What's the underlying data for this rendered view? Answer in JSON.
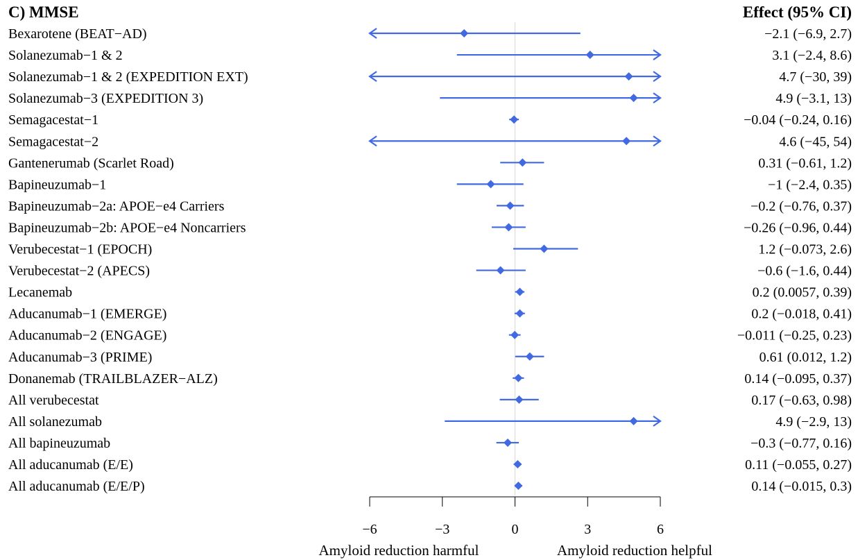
{
  "chart_data": {
    "type": "forest",
    "title": "C) MMSE",
    "effect_header": "Effect (95% CI)",
    "xlim": [
      -6,
      6
    ],
    "xticks": [
      -6,
      -3,
      0,
      3,
      6
    ],
    "xtick_labels": [
      "−6",
      "−3",
      "0",
      "3",
      "6"
    ],
    "xlabel_left": "Amyloid reduction harmful",
    "xlabel_right": "Amyloid reduction helpful",
    "series_color": "#4169e1",
    "rows": [
      {
        "label": "Bexarotene (BEAT−AD)",
        "effect": -2.1,
        "lower": -6.9,
        "upper": 2.7,
        "effect_text": "−2.1  (−6.9, 2.7)"
      },
      {
        "label": "Solanezumab−1 & 2",
        "effect": 3.1,
        "lower": -2.4,
        "upper": 8.6,
        "effect_text": "3.1  (−2.4, 8.6)"
      },
      {
        "label": "Solanezumab−1 & 2 (EXPEDITION EXT)",
        "effect": 4.7,
        "lower": -30,
        "upper": 39,
        "effect_text": "4.7  (−30, 39)"
      },
      {
        "label": "Solanezumab−3 (EXPEDITION 3)",
        "effect": 4.9,
        "lower": -3.1,
        "upper": 13,
        "effect_text": "4.9  (−3.1, 13)"
      },
      {
        "label": "Semagacestat−1",
        "effect": -0.04,
        "lower": -0.24,
        "upper": 0.16,
        "effect_text": "−0.04  (−0.24, 0.16)"
      },
      {
        "label": "Semagacestat−2",
        "effect": 4.6,
        "lower": -45,
        "upper": 54,
        "effect_text": "4.6  (−45, 54)"
      },
      {
        "label": "Gantenerumab (Scarlet Road)",
        "effect": 0.31,
        "lower": -0.61,
        "upper": 1.2,
        "effect_text": "0.31  (−0.61, 1.2)"
      },
      {
        "label": "Bapineuzumab−1",
        "effect": -1,
        "lower": -2.4,
        "upper": 0.35,
        "effect_text": "−1  (−2.4, 0.35)"
      },
      {
        "label": "Bapineuzumab−2a: APOE−e4 Carriers",
        "effect": -0.2,
        "lower": -0.76,
        "upper": 0.37,
        "effect_text": "−0.2  (−0.76, 0.37)"
      },
      {
        "label": "Bapineuzumab−2b: APOE−e4 Noncarriers",
        "effect": -0.26,
        "lower": -0.96,
        "upper": 0.44,
        "effect_text": "−0.26  (−0.96, 0.44)"
      },
      {
        "label": "Verubecestat−1 (EPOCH)",
        "effect": 1.2,
        "lower": -0.073,
        "upper": 2.6,
        "effect_text": "1.2  (−0.073, 2.6)"
      },
      {
        "label": "Verubecestat−2 (APECS)",
        "effect": -0.6,
        "lower": -1.6,
        "upper": 0.44,
        "effect_text": "−0.6  (−1.6, 0.44)"
      },
      {
        "label": "Lecanemab",
        "effect": 0.2,
        "lower": 0.0057,
        "upper": 0.39,
        "effect_text": "0.2  (0.0057, 0.39)"
      },
      {
        "label": "Aducanumab−1 (EMERGE)",
        "effect": 0.2,
        "lower": -0.018,
        "upper": 0.41,
        "effect_text": "0.2  (−0.018, 0.41)"
      },
      {
        "label": "Aducanumab−2 (ENGAGE)",
        "effect": -0.011,
        "lower": -0.25,
        "upper": 0.23,
        "effect_text": "−0.011  (−0.25, 0.23)"
      },
      {
        "label": "Aducanumab−3 (PRIME)",
        "effect": 0.61,
        "lower": 0.012,
        "upper": 1.2,
        "effect_text": "0.61  (0.012, 1.2)"
      },
      {
        "label": "Donanemab (TRAILBLAZER−ALZ)",
        "effect": 0.14,
        "lower": -0.095,
        "upper": 0.37,
        "effect_text": "0.14  (−0.095, 0.37)"
      },
      {
        "label": "All verubecestat",
        "effect": 0.17,
        "lower": -0.63,
        "upper": 0.98,
        "effect_text": "0.17  (−0.63, 0.98)"
      },
      {
        "label": "All solanezumab",
        "effect": 4.9,
        "lower": -2.9,
        "upper": 13,
        "effect_text": "4.9  (−2.9, 13)"
      },
      {
        "label": "All bapineuzumab",
        "effect": -0.3,
        "lower": -0.77,
        "upper": 0.16,
        "effect_text": "−0.3  (−0.77, 0.16)"
      },
      {
        "label": "All aducanumab (E/E)",
        "effect": 0.11,
        "lower": -0.055,
        "upper": 0.27,
        "effect_text": "0.11  (−0.055, 0.27)"
      },
      {
        "label": "All aducanumab (E/E/P)",
        "effect": 0.14,
        "lower": -0.015,
        "upper": 0.3,
        "effect_text": "0.14  (−0.015, 0.3)"
      }
    ]
  }
}
